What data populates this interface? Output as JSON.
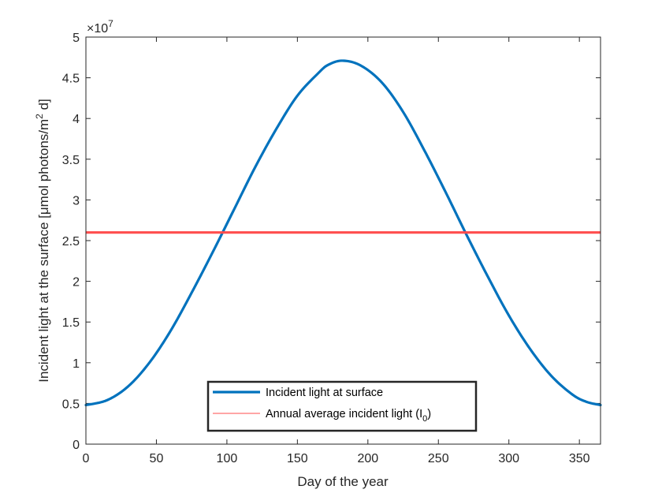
{
  "chart_data": {
    "type": "line",
    "xlabel": "Day of the year",
    "ylabel_main": "Incident light at the surface [μmol photons/m",
    "ylabel_sup": "2",
    "ylabel_tail": " d]",
    "exponent_prefix": "×10",
    "exponent_power": "7",
    "xlim": [
      0,
      365
    ],
    "ylim": [
      0,
      50000000
    ],
    "xticks": [
      0,
      50,
      100,
      150,
      200,
      250,
      300,
      350
    ],
    "xtick_labels": [
      "0",
      "50",
      "100",
      "150",
      "200",
      "250",
      "300",
      "350"
    ],
    "yticks": [
      0,
      5000000,
      10000000,
      15000000,
      20000000,
      25000000,
      30000000,
      35000000,
      40000000,
      45000000,
      50000000
    ],
    "ytick_labels": [
      "0",
      "0.5",
      "1",
      "1.5",
      "2",
      "2.5",
      "3",
      "3.5",
      "4",
      "4.5",
      "5"
    ],
    "grid": false,
    "legend_position": "bottom-center",
    "series": [
      {
        "name": "Incident light at surface",
        "color": "#0072BD",
        "x": [
          0,
          15,
          30,
          45,
          60,
          75,
          90,
          105,
          120,
          135,
          150,
          165,
          172,
          182,
          195,
          210,
          225,
          240,
          255,
          270,
          285,
          300,
          315,
          330,
          345,
          355,
          365
        ],
        "y": [
          4800000,
          5400000,
          7100000,
          10000000,
          13900000,
          18600000,
          23600000,
          28800000,
          34000000,
          38700000,
          42800000,
          45600000,
          46600000,
          47100000,
          46500000,
          44400000,
          40800000,
          36100000,
          31000000,
          25700000,
          20600000,
          15800000,
          11700000,
          8400000,
          6100000,
          5200000,
          4800000
        ]
      },
      {
        "name_main": "Annual average incident light (I",
        "name_sub": "0",
        "name_tail": ")",
        "color": "#FF4D4D",
        "x": [
          0,
          365
        ],
        "y": [
          26000000,
          26000000
        ]
      }
    ]
  }
}
